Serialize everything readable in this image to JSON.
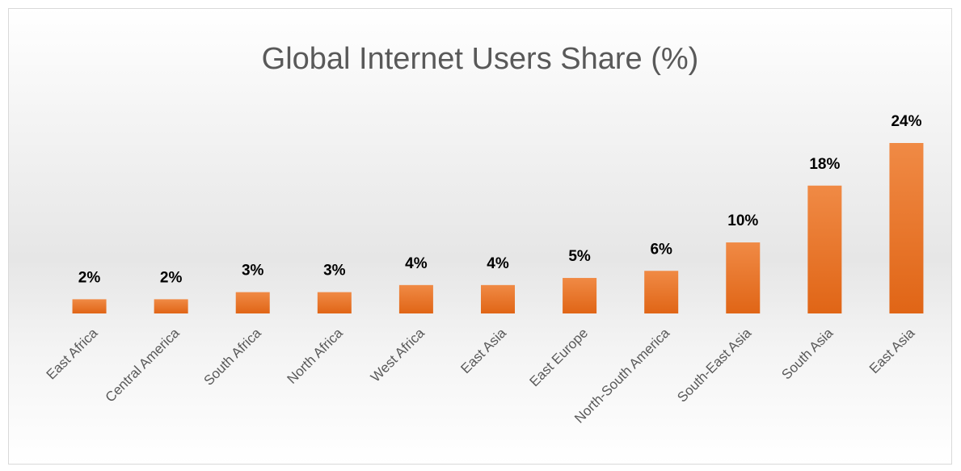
{
  "chart_data": {
    "type": "bar",
    "title": "Global Internet Users Share (%)",
    "categories": [
      "East Africa",
      "Central America",
      "South Africa",
      "North Africa",
      "West Africa",
      "East Asia",
      "East Europe",
      "North-South America",
      "South-East Asia",
      "South Asia",
      "East Asia"
    ],
    "values": [
      2,
      2,
      3,
      3,
      4,
      4,
      5,
      6,
      10,
      18,
      24
    ],
    "value_labels": [
      "2%",
      "2%",
      "3%",
      "3%",
      "4%",
      "4%",
      "5%",
      "6%",
      "10%",
      "18%",
      "24%"
    ],
    "color": "#ed7d31",
    "grid": false
  }
}
